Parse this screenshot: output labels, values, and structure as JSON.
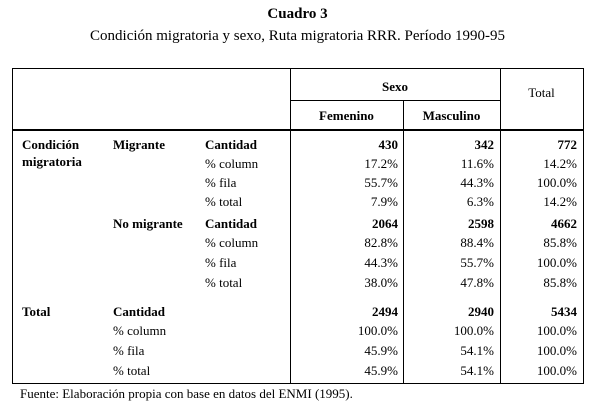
{
  "title": "Cuadro 3",
  "subtitle": "Condición migratoria y sexo, Ruta migratoria RRR. Período 1990-95",
  "table": {
    "header": {
      "group": "Sexo",
      "columns": [
        "Femenino",
        "Masculino"
      ],
      "total": "Total"
    },
    "sections": [
      {
        "label": "Condición migratoria",
        "groups": [
          {
            "label": "Migrante",
            "rows": [
              {
                "measure": "Cantidad",
                "cells": [
                  "430",
                  "342",
                  "772"
                ]
              },
              {
                "measure": "% column",
                "cells": [
                  "17.2%",
                  "11.6%",
                  "14.2%"
                ]
              },
              {
                "measure": "% fila",
                "cells": [
                  "55.7%",
                  "44.3%",
                  "100.0%"
                ]
              },
              {
                "measure": "% total",
                "cells": [
                  "7.9%",
                  "6.3%",
                  "14.2%"
                ]
              }
            ]
          },
          {
            "label": "No migrante",
            "rows": [
              {
                "measure": "Cantidad",
                "cells": [
                  "2064",
                  "2598",
                  "4662"
                ]
              },
              {
                "measure": "% column",
                "cells": [
                  "82.8%",
                  "88.4%",
                  "85.8%"
                ]
              },
              {
                "measure": "% fila",
                "cells": [
                  "44.3%",
                  "55.7%",
                  "100.0%"
                ]
              },
              {
                "measure": "% total",
                "cells": [
                  "38.0%",
                  "47.8%",
                  "85.8%"
                ]
              }
            ]
          }
        ]
      },
      {
        "label": "Total",
        "rows": [
          {
            "measure": "Cantidad",
            "cells": [
              "2494",
              "2940",
              "5434"
            ]
          },
          {
            "measure": "% column",
            "cells": [
              "100.0%",
              "100.0%",
              "100.0%"
            ]
          },
          {
            "measure": "% fila",
            "cells": [
              "45.9%",
              "54.1%",
              "100.0%"
            ]
          },
          {
            "measure": "% total",
            "cells": [
              "45.9%",
              "54.1%",
              "100.0%"
            ]
          }
        ]
      }
    ]
  },
  "footer": "Fuente: Elaboración propia con base en datos del ENMI (1995)."
}
